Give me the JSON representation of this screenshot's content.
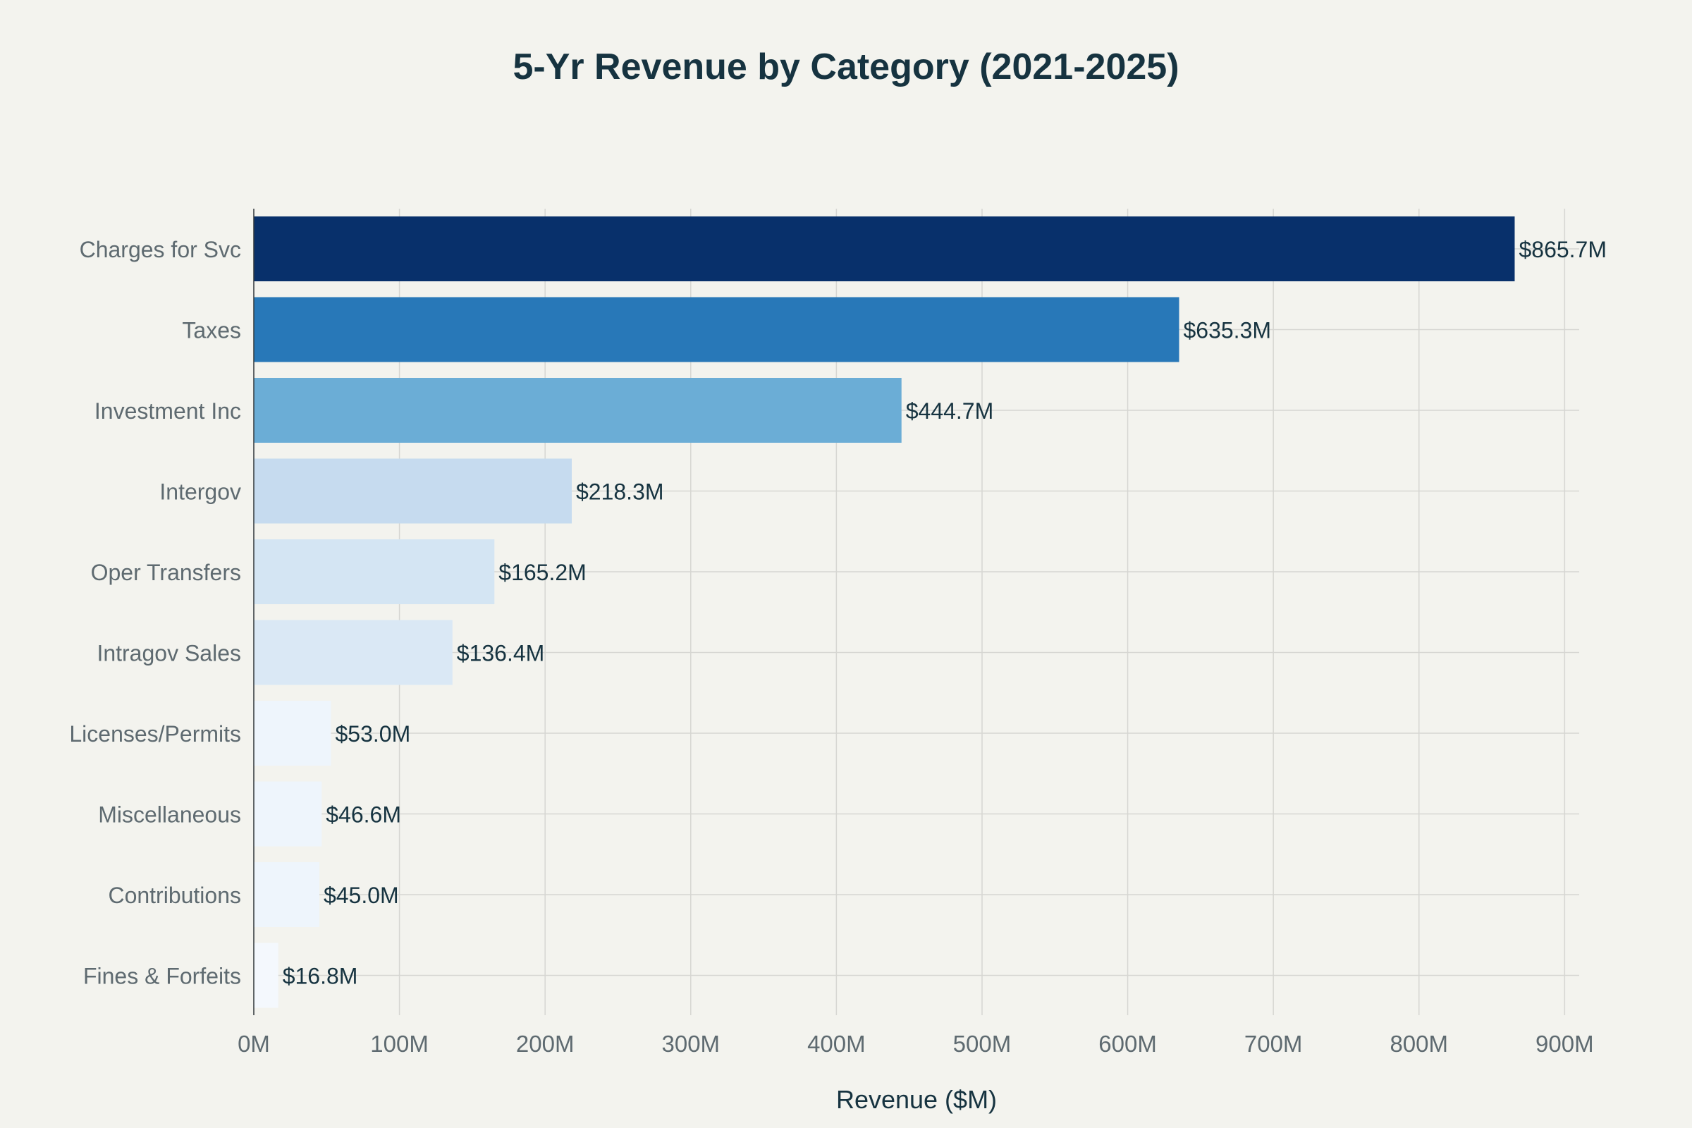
{
  "chart_data": {
    "type": "bar",
    "orientation": "horizontal",
    "title": "5-Yr Revenue by Category (2021-2025)",
    "xlabel": "Revenue ($M)",
    "ylabel": "",
    "xlim": [
      0,
      910
    ],
    "x_ticks": [
      0,
      100,
      200,
      300,
      400,
      500,
      600,
      700,
      800,
      900
    ],
    "x_tick_labels": [
      "0M",
      "100M",
      "200M",
      "300M",
      "400M",
      "500M",
      "600M",
      "700M",
      "800M",
      "900M"
    ],
    "grid": true,
    "legend": "none",
    "categories": [
      "Charges for Svc",
      "Taxes",
      "Investment Inc",
      "Intergov",
      "Oper Transfers",
      "Intragov Sales",
      "Licenses/Permits",
      "Miscellaneous",
      "Contributions",
      "Fines & Forfeits"
    ],
    "values": [
      865.7,
      635.3,
      444.7,
      218.3,
      165.2,
      136.4,
      53.0,
      46.6,
      45.0,
      16.8
    ],
    "data_labels": [
      "$865.7M",
      "$635.3M",
      "$444.7M",
      "$218.3M",
      "$165.2M",
      "$136.4M",
      "$53.0M",
      "$46.6M",
      "$45.0M",
      "$16.8M"
    ],
    "colors": [
      "#08306b",
      "#2878b8",
      "#6badd6",
      "#c6dbef",
      "#d4e5f3",
      "#dae8f5",
      "#eef5fc",
      "#eef5fc",
      "#eef5fc",
      "#f4f8fd"
    ],
    "background": "#f3f3ee",
    "grid_color": "#d6d6d2"
  }
}
